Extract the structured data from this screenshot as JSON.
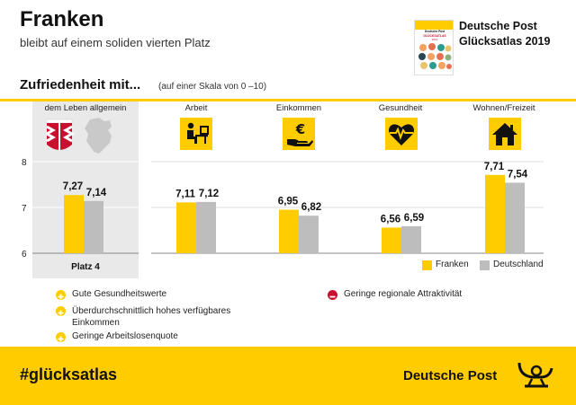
{
  "header": {
    "title": "Franken",
    "subtitle": "bleibt auf einem soliden vierten Platz",
    "brand_line1": "Deutsche Post",
    "brand_line2": "Glücksatlas 2019",
    "cover_line1": "Deutsche Post",
    "cover_line2": "GLÜCKSATLAS",
    "cover_line3": "2019"
  },
  "section": {
    "title": "Zufriedenheit mit...",
    "note": "(auf einer Skala von 0 –10)"
  },
  "icons": {
    "leben": "flag-map-icon",
    "arbeit": "desk-worker-icon",
    "einkommen": "euro-hand-icon",
    "gesundheit": "heart-pulse-icon",
    "wohnen": "house-icon"
  },
  "rank_label": "Platz 4",
  "chart_data": {
    "type": "bar",
    "categories": [
      "dem Leben allgemein",
      "Arbeit",
      "Einkommen",
      "Gesundheit",
      "Wohnen/Freizeit"
    ],
    "series": [
      {
        "name": "Franken",
        "values": [
          7.27,
          7.11,
          6.95,
          6.56,
          7.71
        ],
        "labels": [
          "7,27",
          "7,11",
          "6,95",
          "6,56",
          "7,71"
        ],
        "color": "#FFCC00"
      },
      {
        "name": "Deutschland",
        "values": [
          7.14,
          7.12,
          6.82,
          6.59,
          7.54
        ],
        "labels": [
          "7,14",
          "7,12",
          "6,82",
          "6,59",
          "7,54"
        ],
        "color": "#BDBDBD"
      }
    ],
    "ylim": [
      6,
      8
    ],
    "yticks": [
      "6",
      "7",
      "8"
    ],
    "legend_position": "bottom-right"
  },
  "points": {
    "positive": [
      "Gute Gesundheitswerte",
      "Überdurchschnittlich hohes verfügbares Einkommen",
      "Geringe Arbeitslosenquote"
    ],
    "negative": [
      "Geringe regionale Attraktivität"
    ],
    "positive_color": "#FFCC00",
    "negative_color": "#C8102E"
  },
  "footer": {
    "hashtag": "#glücksatlas",
    "logo_text": "Deutsche Post",
    "logo_icon": "post-horn-icon"
  }
}
